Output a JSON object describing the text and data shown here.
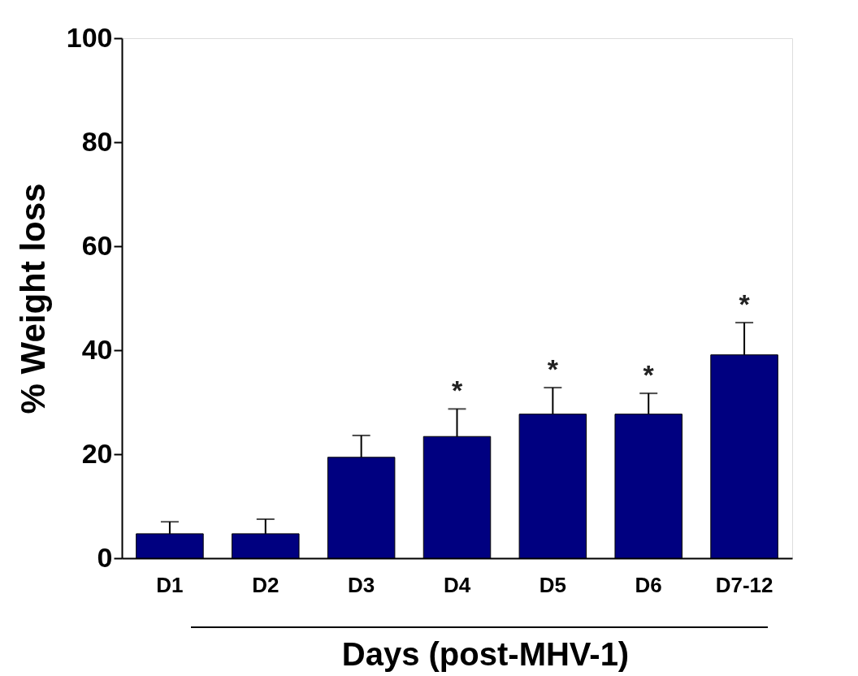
{
  "chart_data": {
    "type": "bar",
    "xlabel": "Days (post-MHV-1)",
    "ylabel": "% Weight loss",
    "categories": [
      "D1",
      "D2",
      "D3",
      "D4",
      "D5",
      "D6",
      "D7-12"
    ],
    "values": [
      4.7,
      4.7,
      19.4,
      23.4,
      27.7,
      27.7,
      39.1
    ],
    "errors": [
      [
        4.7,
        7.0
      ],
      [
        4.7,
        7.5
      ],
      [
        19.4,
        23.6
      ],
      [
        23.4,
        28.7
      ],
      [
        27.7,
        32.8
      ],
      [
        27.7,
        31.7
      ],
      [
        39.1,
        45.3
      ]
    ],
    "color": "#000080",
    "ylim": [
      0,
      100
    ],
    "yticks": [
      0,
      20,
      40,
      60,
      80,
      100
    ],
    "grid": false,
    "value_labels": [
      null,
      null,
      null,
      "*",
      "*",
      "*",
      "*"
    ]
  }
}
